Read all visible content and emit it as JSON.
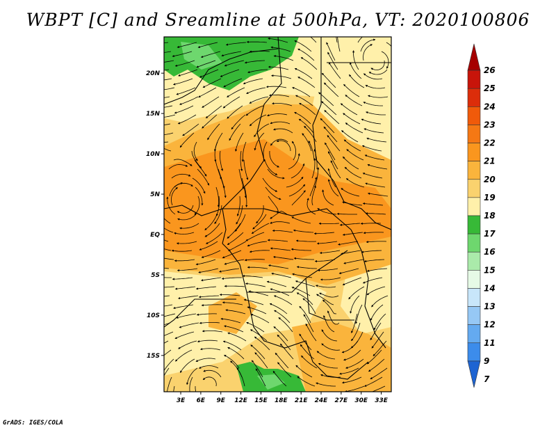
{
  "title": "WBPT [C] and Sreamline at 500hPa, VT: 2020100806",
  "credit": "GrADS: IGES/COLA",
  "map": {
    "lat_labels": [
      "20N",
      "15N",
      "10N",
      "5N",
      "EQ",
      "5S",
      "10S",
      "15S"
    ],
    "lon_labels": [
      "3E",
      "6E",
      "9E",
      "12E",
      "15E",
      "18E",
      "21E",
      "24E",
      "27E",
      "30E",
      "33E"
    ],
    "lat_values": [
      20,
      15,
      10,
      5,
      0,
      -5,
      -10,
      -15
    ],
    "lon_values": [
      3,
      6,
      9,
      12,
      15,
      18,
      21,
      24,
      27,
      30,
      33
    ],
    "lat_range": [
      -19.5,
      24.5
    ],
    "lon_range": [
      0.5,
      34.5
    ],
    "field": "WBPT [C]",
    "overlay": "streamlines",
    "level": "500hPa"
  },
  "colorbar": {
    "labels": [
      "26",
      "25",
      "24",
      "23",
      "22",
      "21",
      "20",
      "19",
      "18",
      "17",
      "16",
      "15",
      "14",
      "13",
      "12",
      "11",
      "9",
      "7"
    ],
    "colors": [
      "#a50000",
      "#c8140a",
      "#dc2d0a",
      "#f05a0a",
      "#f57814",
      "#fa961e",
      "#fab43c",
      "#fad26e",
      "#fff0aa",
      "#37b937",
      "#6ed76e",
      "#aaeaaa",
      "#e6fae6",
      "#c8e6fa",
      "#96c8f5",
      "#64aaf0",
      "#3c8ceb",
      "#1e64d2"
    ]
  }
}
